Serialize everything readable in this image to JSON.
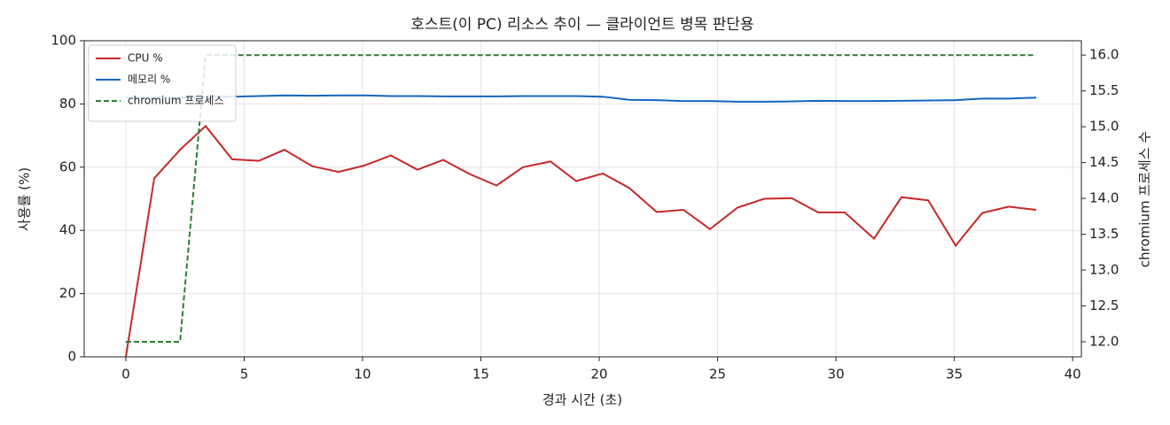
{
  "chart_data": {
    "type": "line",
    "title": "호스트(이 PC) 리소스 추이 — 클라이언트 병목 판단용",
    "x_label": "경과 시간 (초)",
    "y_label": "사용률 (%)",
    "y2_label": "chromium 프로세스 수",
    "x": [
      0,
      1.2,
      2.29,
      3.37,
      4.49,
      5.62,
      6.7,
      7.87,
      8.99,
      10.07,
      11.2,
      12.32,
      13.41,
      14.53,
      15.66,
      16.78,
      17.94,
      19.03,
      20.15,
      21.27,
      22.43,
      23.56,
      24.68,
      25.84,
      26.97,
      28.13,
      29.25,
      30.37,
      31.61,
      32.77,
      33.9,
      35.06,
      36.18,
      37.3,
      38.46
    ],
    "series": [
      {
        "name": "CPU %",
        "color": "#c62828",
        "dashed": false,
        "values": [
          0,
          56.5,
          65.5,
          73,
          62.5,
          62,
          65.5,
          60.3,
          58.5,
          60.5,
          63.7,
          59.2,
          62.3,
          57.8,
          54.2,
          60,
          61.8,
          55.6,
          58,
          53.4,
          45.8,
          46.5,
          40.4,
          47.2,
          50,
          50.2,
          45.7,
          45.7,
          37.4,
          50.5,
          49.5,
          35.2,
          45.5,
          47.5,
          46.5
        ]
      },
      {
        "name": "메모리 %",
        "color": "#1565c0",
        "dashed": false,
        "values": [
          82,
          82,
          82,
          82.2,
          82.3,
          82.5,
          82.7,
          82.6,
          82.7,
          82.7,
          82.5,
          82.5,
          82.4,
          82.4,
          82.4,
          82.5,
          82.5,
          82.5,
          82.3,
          81.3,
          81.2,
          80.9,
          80.9,
          80.7,
          80.7,
          80.8,
          81,
          80.9,
          80.9,
          81,
          81.1,
          81.2,
          81.7,
          81.7,
          82
        ]
      },
      {
        "name": "chromium 프로세스",
        "color": "#2e7d32",
        "dashed": true,
        "axis": "y2",
        "values": [
          12,
          12,
          12,
          16,
          16,
          16,
          16,
          16,
          16,
          16,
          16,
          16,
          16,
          16,
          16,
          16,
          16,
          16,
          16,
          16,
          16,
          16,
          16,
          16,
          16,
          16,
          16,
          16,
          16,
          16,
          16,
          16,
          16,
          16,
          16
        ]
      }
    ],
    "xlim": [
      -1.76,
      40.37
    ],
    "xticks": [
      0,
      5,
      10,
      15,
      20,
      25,
      30,
      35,
      40
    ],
    "ylim": [
      0,
      100
    ],
    "yticks": [
      0,
      20,
      40,
      60,
      80,
      100
    ],
    "y2lim": [
      11.79,
      16.2
    ],
    "y2ticks": [
      {
        "value": 12,
        "label": "12.0"
      },
      {
        "value": 12.5,
        "label": "12.5"
      },
      {
        "value": 13,
        "label": "13.0"
      },
      {
        "value": 13.5,
        "label": "13.5"
      },
      {
        "value": 14,
        "label": "14.0"
      },
      {
        "value": 14.5,
        "label": "14.5"
      },
      {
        "value": 15,
        "label": "15.0"
      },
      {
        "value": 15.5,
        "label": "15.5"
      },
      {
        "value": 16,
        "label": "16.0"
      }
    ],
    "grid": true,
    "legend": "upper left"
  }
}
